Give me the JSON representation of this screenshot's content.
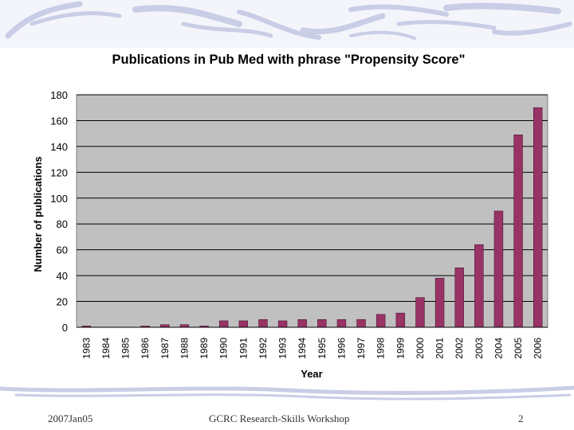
{
  "slide": {
    "footer_left": "2007Jan05",
    "footer_center": "GCRC Research-Skills Workshop",
    "page_number": "2",
    "decoration_color": "#c9cde6"
  },
  "chart_data": {
    "type": "bar",
    "title": "Publications in Pub Med with phrase \"Propensity Score\"",
    "xlabel": "Year",
    "ylabel": "Number of publications",
    "categories": [
      "1983",
      "1984",
      "1985",
      "1986",
      "1987",
      "1988",
      "1989",
      "1990",
      "1991",
      "1992",
      "1993",
      "1994",
      "1995",
      "1996",
      "1997",
      "1998",
      "1999",
      "2000",
      "2001",
      "2002",
      "2003",
      "2004",
      "2005",
      "2006"
    ],
    "values": [
      1,
      0,
      0,
      1,
      2,
      2,
      1,
      5,
      5,
      6,
      5,
      6,
      6,
      6,
      6,
      10,
      11,
      23,
      38,
      46,
      64,
      90,
      149,
      170
    ],
    "ylim": [
      0,
      180
    ],
    "yticks": [
      0,
      20,
      40,
      60,
      80,
      100,
      120,
      140,
      160,
      180
    ],
    "grid": true,
    "legend": "none",
    "colors": {
      "bar": "#993366",
      "plot_background": "#c0c0c0",
      "gridline": "#000000"
    }
  }
}
